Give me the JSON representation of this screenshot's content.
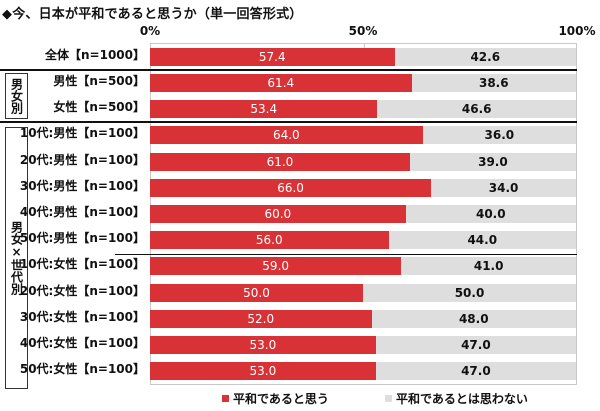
{
  "title": "◆今、日本が平和であると思うか（単一回答形式）",
  "axis": {
    "ticks": [
      "0%",
      "50%",
      "100%"
    ]
  },
  "legend": {
    "yes": {
      "label": "平和であると思う",
      "color": "#d83236"
    },
    "no": {
      "label": "平和であるとは思わない",
      "color": "#dedede"
    }
  },
  "groups": {
    "gender": "男女別",
    "gender_age": "男女×世代別"
  },
  "rows": [
    {
      "label": "全体【n=1000】",
      "yes": "57.4",
      "no": "42.6"
    },
    {
      "label": "男性【n=500】",
      "yes": "61.4",
      "no": "38.6"
    },
    {
      "label": "女性【n=500】",
      "yes": "53.4",
      "no": "46.6"
    },
    {
      "label": "10代:男性【n=100】",
      "yes": "64.0",
      "no": "36.0"
    },
    {
      "label": "20代:男性【n=100】",
      "yes": "61.0",
      "no": "39.0"
    },
    {
      "label": "30代:男性【n=100】",
      "yes": "66.0",
      "no": "34.0"
    },
    {
      "label": "40代:男性【n=100】",
      "yes": "60.0",
      "no": "40.0"
    },
    {
      "label": "50代:男性【n=100】",
      "yes": "56.0",
      "no": "44.0"
    },
    {
      "label": "10代:女性【n=100】",
      "yes": "59.0",
      "no": "41.0"
    },
    {
      "label": "20代:女性【n=100】",
      "yes": "50.0",
      "no": "50.0"
    },
    {
      "label": "30代:女性【n=100】",
      "yes": "52.0",
      "no": "48.0"
    },
    {
      "label": "40代:女性【n=100】",
      "yes": "53.0",
      "no": "47.0"
    },
    {
      "label": "50代:女性【n=100】",
      "yes": "53.0",
      "no": "47.0"
    }
  ],
  "chart_data": {
    "type": "bar",
    "orientation": "horizontal",
    "stacked": true,
    "title": "◆今、日本が平和であると思うか（単一回答形式）",
    "xlabel": "",
    "ylabel": "",
    "xlim": [
      0,
      100
    ],
    "x_ticks": [
      "0%",
      "50%",
      "100%"
    ],
    "legend_position": "bottom",
    "grid": false,
    "categories": [
      "全体【n=1000】",
      "男性【n=500】",
      "女性【n=500】",
      "10代:男性【n=100】",
      "20代:男性【n=100】",
      "30代:男性【n=100】",
      "40代:男性【n=100】",
      "50代:男性【n=100】",
      "10代:女性【n=100】",
      "20代:女性【n=100】",
      "30代:女性【n=100】",
      "40代:女性【n=100】",
      "50代:女性【n=100】"
    ],
    "category_groups": [
      {
        "name": "男女別",
        "members": [
          "男性【n=500】",
          "女性【n=500】"
        ]
      },
      {
        "name": "男女×世代別",
        "members": [
          "10代:男性【n=100】",
          "20代:男性【n=100】",
          "30代:男性【n=100】",
          "40代:男性【n=100】",
          "50代:男性【n=100】",
          "10代:女性【n=100】",
          "20代:女性【n=100】",
          "30代:女性【n=100】",
          "40代:女性【n=100】",
          "50代:女性【n=100】"
        ]
      }
    ],
    "series": [
      {
        "name": "平和であると思う",
        "color": "#d83236",
        "values": [
          57.4,
          61.4,
          53.4,
          64.0,
          61.0,
          66.0,
          60.0,
          56.0,
          59.0,
          50.0,
          52.0,
          53.0,
          53.0
        ]
      },
      {
        "name": "平和であるとは思わない",
        "color": "#dedede",
        "values": [
          42.6,
          38.6,
          46.6,
          36.0,
          39.0,
          34.0,
          40.0,
          44.0,
          41.0,
          50.0,
          48.0,
          47.0,
          47.0
        ]
      }
    ]
  }
}
